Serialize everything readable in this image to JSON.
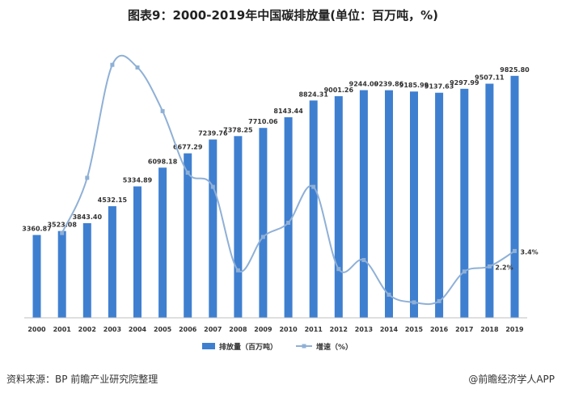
{
  "chart_data": {
    "type": "bar",
    "title": "图表9：2000-2019年中国碳排放量(单位：百万吨，%)",
    "categories": [
      "2000",
      "2001",
      "2002",
      "2003",
      "2004",
      "2005",
      "2006",
      "2007",
      "2008",
      "2009",
      "2010",
      "2011",
      "2012",
      "2013",
      "2014",
      "2015",
      "2016",
      "2017",
      "2018",
      "2019"
    ],
    "series": [
      {
        "name": "排放量（百万吨）",
        "type": "bar",
        "color": "#3f7fd0",
        "values": [
          3360.87,
          3523.08,
          3843.4,
          4532.15,
          5334.89,
          6098.18,
          6677.29,
          7239.76,
          7378.25,
          7710.06,
          8143.44,
          8824.31,
          9001.26,
          9244.0,
          9239.86,
          9185.99,
          9137.63,
          9297.99,
          9507.11,
          9825.8
        ],
        "labels": [
          "3360.87",
          "3523.08",
          "3843.40",
          "4532.15",
          "5334.89",
          "6098.18",
          "6677.29",
          "7239.76",
          "7378.25",
          "7710.06",
          "8143.44",
          "8824.31",
          "9001.26",
          "9244.00",
          "9239.86",
          "9185.99",
          "9137.63",
          "9297.99",
          "9507.11",
          "9825.80"
        ]
      },
      {
        "name": "增速（%）",
        "type": "line",
        "color": "#8fb0d6",
        "values": [
          null,
          4.8,
          9.1,
          17.9,
          17.7,
          14.3,
          9.5,
          8.4,
          1.9,
          4.5,
          5.6,
          8.4,
          2.0,
          2.7,
          0.0,
          -0.6,
          -0.5,
          1.8,
          2.2,
          3.4
        ],
        "labels": {
          "18": "2.2%",
          "19": "3.4%"
        }
      }
    ],
    "ylim_bar": [
      0,
      11000
    ],
    "ylim_line": [
      -1.8,
      19.3
    ],
    "grid": false,
    "legend": "bottom"
  },
  "source_note": "资料来源：BP 前瞻产业研究院整理",
  "credit": "@前瞻经济学人APP"
}
